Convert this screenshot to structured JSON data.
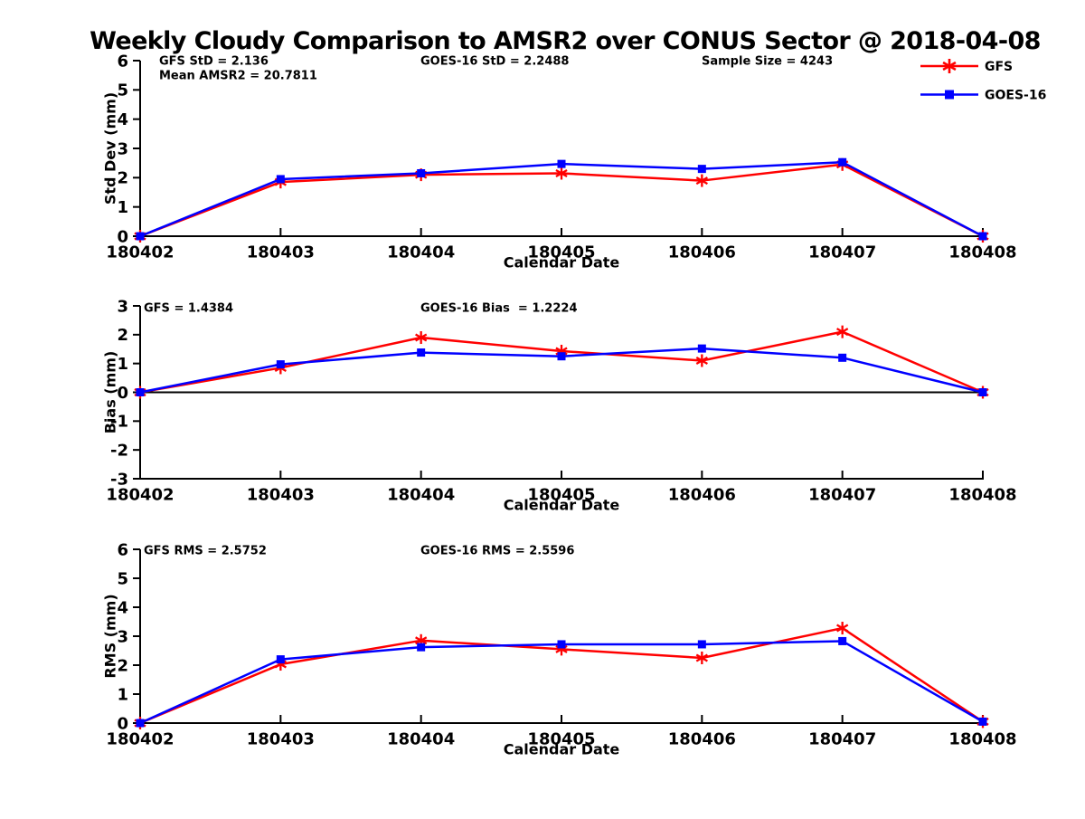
{
  "title": "Weekly Cloudy Comparison to AMSR2 over CONUS Sector @ 2018-04-08",
  "xlabel": "Calendar Date",
  "categories": [
    "180402",
    "180403",
    "180404",
    "180405",
    "180406",
    "180407",
    "180408"
  ],
  "colors": {
    "gfs_red": "#ff0000",
    "goes_blue": "#0000ff",
    "axis_black": "#000000",
    "background": "#ffffff"
  },
  "legend": [
    {
      "label": "GFS",
      "color": "#ff0000",
      "marker": "asterisk"
    },
    {
      "label": "GOES-16",
      "color": "#0000ff",
      "marker": "square"
    }
  ],
  "chart_data": [
    {
      "type": "line",
      "panel": "std-dev",
      "ylabel": "Std Dev (mm)",
      "ylim": [
        0,
        6
      ],
      "yticks": [
        0,
        1,
        2,
        3,
        4,
        5,
        6
      ],
      "zero_line": false,
      "legend_position": "upper right outside plot",
      "annotations": [
        {
          "text": "GFS StD = 2.136"
        },
        {
          "text": "Mean AMSR2 = 20.7811"
        },
        {
          "text": "GOES-16 StD = 2.2488"
        },
        {
          "text": "Sample Size = 4243"
        }
      ],
      "series": [
        {
          "name": "GFS",
          "marker": "asterisk",
          "color": "#ff0000",
          "values": [
            0,
            1.85,
            2.1,
            2.15,
            1.9,
            2.45,
            0
          ]
        },
        {
          "name": "GOES-16",
          "marker": "square",
          "color": "#0000ff",
          "values": [
            0,
            1.95,
            2.15,
            2.47,
            2.3,
            2.53,
            0
          ]
        }
      ]
    },
    {
      "type": "line",
      "panel": "bias",
      "ylabel": "Bias (mm)",
      "ylim": [
        -3,
        3
      ],
      "yticks": [
        -3,
        -2,
        -1,
        0,
        1,
        2,
        3
      ],
      "zero_line": true,
      "annotations": [
        {
          "text": "GFS = 1.4384"
        },
        {
          "text": "GOES-16 Bias  = 1.2224"
        }
      ],
      "series": [
        {
          "name": "GFS",
          "marker": "asterisk",
          "color": "#ff0000",
          "values": [
            0,
            0.85,
            1.9,
            1.43,
            1.1,
            2.1,
            0
          ]
        },
        {
          "name": "GOES-16",
          "marker": "square",
          "color": "#0000ff",
          "values": [
            0,
            0.97,
            1.38,
            1.25,
            1.52,
            1.2,
            0
          ]
        }
      ]
    },
    {
      "type": "line",
      "panel": "rms",
      "ylabel": "RMS (mm)",
      "ylim": [
        0,
        6
      ],
      "yticks": [
        0,
        1,
        2,
        3,
        4,
        5,
        6
      ],
      "zero_line": false,
      "annotations": [
        {
          "text": "GFS RMS = 2.5752"
        },
        {
          "text": "GOES-16 RMS = 2.5596"
        }
      ],
      "series": [
        {
          "name": "GFS",
          "marker": "asterisk",
          "color": "#ff0000",
          "values": [
            0,
            2.03,
            2.85,
            2.55,
            2.25,
            3.28,
            0.05
          ]
        },
        {
          "name": "GOES-16",
          "marker": "square",
          "color": "#0000ff",
          "values": [
            0,
            2.2,
            2.62,
            2.72,
            2.72,
            2.83,
            0.05
          ]
        }
      ]
    }
  ]
}
